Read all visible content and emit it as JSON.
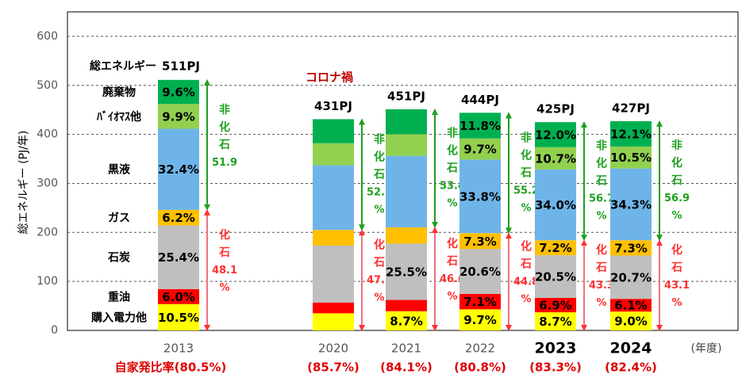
{
  "chart_data": {
    "type": "stacked_bar",
    "y_label": "総エネルギー (PJ/年)",
    "x_unit": "(年度)",
    "total_title": "総エネルギー",
    "annotation": "コロナ禍",
    "categories": [
      "2013",
      "2020",
      "2021",
      "2022",
      "2023",
      "2024"
    ],
    "bold": [
      false,
      false,
      false,
      false,
      true,
      true
    ],
    "totals": [
      "511PJ",
      "431PJ",
      "451PJ",
      "444PJ",
      "425PJ",
      "427PJ"
    ],
    "ratios": [
      "自家発比率(80.5%)",
      "(85.7%)",
      "(84.1%)",
      "(80.8%)",
      "(83.3%)",
      "(82.4%)"
    ],
    "series": [
      {
        "name": "購入電力他",
        "color": "#ffff00",
        "values": [
          53.7,
          35,
          39.2,
          43.1,
          37.0,
          38.4
        ],
        "value_labels": [
          "10.5%",
          null,
          "8.7%",
          "9.7%",
          "8.7%",
          "9.0%"
        ]
      },
      {
        "name": "重油",
        "color": "#ff0000",
        "values": [
          30.7,
          22,
          23,
          31.5,
          29.3,
          26.0
        ],
        "value_labels": [
          "6.0%",
          null,
          null,
          "7.1%",
          "6.9%",
          "6.1%"
        ]
      },
      {
        "name": "石炭",
        "color": "#bfbfbf",
        "values": [
          129.8,
          116,
          115,
          91.5,
          87.1,
          88.4
        ],
        "value_labels": [
          "25.4%",
          null,
          "25.5%",
          "20.6%",
          "20.5%",
          "20.7%"
        ]
      },
      {
        "name": "ガス",
        "color": "#ffc000",
        "values": [
          31.7,
          32,
          33,
          32.4,
          30.6,
          31.2
        ],
        "value_labels": [
          "6.2%",
          null,
          null,
          "7.3%",
          "7.2%",
          "7.3%"
        ]
      },
      {
        "name": "黒液",
        "color": "#6fb4e8",
        "values": [
          165.6,
          132,
          146,
          150.1,
          144.5,
          146.5
        ],
        "value_labels": [
          "32.4%",
          null,
          null,
          "33.8%",
          "34.0%",
          "34.3%"
        ]
      },
      {
        "name": "ﾊﾞｲｵﾏｽ他",
        "color": "#92d050",
        "values": [
          50.6,
          45,
          44,
          43.1,
          45.5,
          44.8
        ],
        "value_labels": [
          "9.9%",
          null,
          null,
          "9.7%",
          "10.7%",
          "10.5%"
        ]
      },
      {
        "name": "廃棄物",
        "color": "#00b050",
        "values": [
          49.1,
          49,
          51,
          52.4,
          51.0,
          51.7
        ],
        "value_labels": [
          "9.6%",
          null,
          null,
          "11.8%",
          "12.0%",
          "12.1%"
        ]
      }
    ],
    "non_fossil": {
      "title": "非化石",
      "color": "#1ea01e",
      "values": [
        51.9,
        52.2,
        53.4,
        55.2,
        56.7,
        56.9
      ],
      "value_labels": [
        "51.9",
        "52.2 %",
        "53.4 %",
        "55.2 %",
        "56.7 %",
        "56.9 %"
      ]
    },
    "fossil": {
      "title": "化石",
      "color": "#ff3030",
      "values": [
        48.1,
        47.8,
        46.6,
        44.8,
        43.3,
        43.1
      ],
      "value_labels": [
        "48.1 %",
        "47.8 %",
        "46.6 %",
        "44.8 %",
        "43.3 %",
        "43.1 %"
      ]
    },
    "ylim": [
      0,
      650
    ],
    "yticks": [
      0,
      100,
      200,
      300,
      400,
      500,
      600
    ],
    "grid": true
  }
}
